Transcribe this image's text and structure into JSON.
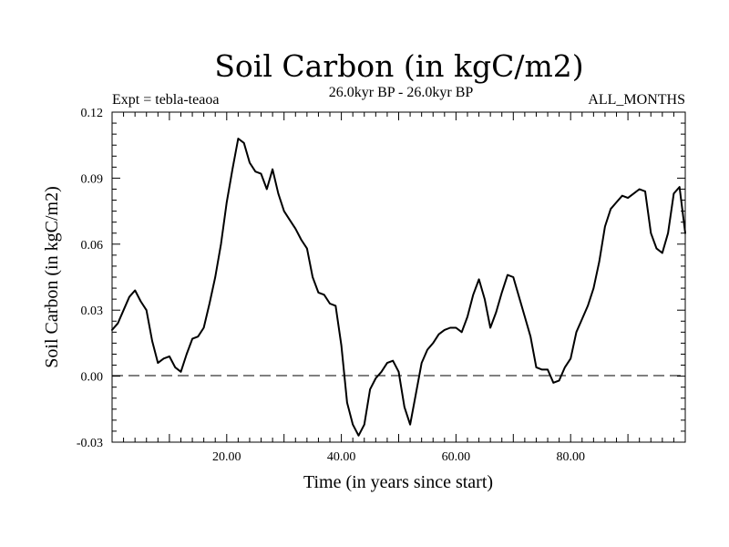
{
  "chart_data": {
    "type": "line",
    "title": "Soil Carbon (in kgC/m2)",
    "subtitle_left": "Expt = tebla-teaoa",
    "subtitle_center": "26.0kyr BP - 26.0kyr BP",
    "subtitle_right": "ALL_MONTHS",
    "xlabel": "Time (in years since start)",
    "ylabel": "Soil Carbon (in kgC/m2)",
    "xlim": [
      0,
      100
    ],
    "ylim": [
      -0.03,
      0.12
    ],
    "xticks": [
      20,
      40,
      60,
      80
    ],
    "xtick_labels": [
      "20.00",
      "40.00",
      "60.00",
      "80.00"
    ],
    "yticks": [
      -0.03,
      0,
      0.03,
      0.06,
      0.09,
      0.12
    ],
    "ytick_labels": [
      "-0.03",
      "0.00",
      "0.03",
      "0.06",
      "0.09",
      "0.12"
    ],
    "reference_line": {
      "y": 0,
      "style": "dashed"
    },
    "grid": false,
    "series": [
      {
        "x": [
          0,
          1,
          2,
          3,
          4,
          5,
          6,
          7,
          8,
          9,
          10,
          11,
          12,
          13,
          14,
          15,
          16,
          17,
          18,
          19,
          20,
          21,
          22,
          23,
          24,
          25,
          26,
          27,
          28,
          29,
          30,
          31,
          32,
          33,
          34,
          35,
          36,
          37,
          38,
          39,
          40,
          41,
          42,
          43,
          44,
          45,
          46,
          47,
          48,
          49,
          50,
          51,
          52,
          53,
          54,
          55,
          56,
          57,
          58,
          59,
          60,
          61,
          62,
          63,
          64,
          65,
          66,
          67,
          68,
          69,
          70,
          71,
          72,
          73,
          74,
          75,
          76,
          77,
          78,
          79,
          80,
          81,
          82,
          83,
          84,
          85,
          86,
          87,
          88,
          89,
          90,
          91,
          92,
          93,
          94,
          95,
          96,
          97,
          98,
          99,
          100
        ],
        "y": [
          0.021,
          0.024,
          0.03,
          0.036,
          0.039,
          0.034,
          0.03,
          0.016,
          0.006,
          0.008,
          0.009,
          0.004,
          0.002,
          0.01,
          0.017,
          0.018,
          0.022,
          0.033,
          0.045,
          0.06,
          0.079,
          0.094,
          0.108,
          0.106,
          0.097,
          0.093,
          0.092,
          0.085,
          0.094,
          0.083,
          0.075,
          0.071,
          0.067,
          0.062,
          0.058,
          0.045,
          0.038,
          0.037,
          0.033,
          0.032,
          0.014,
          -0.012,
          -0.022,
          -0.027,
          -0.022,
          -0.006,
          -0.001,
          0.002,
          0.006,
          0.007,
          0.002,
          -0.014,
          -0.022,
          -0.008,
          0.006,
          0.012,
          0.015,
          0.019,
          0.021,
          0.022,
          0.022,
          0.02,
          0.027,
          0.037,
          0.044,
          0.035,
          0.022,
          0.029,
          0.038,
          0.046,
          0.045,
          0.036,
          0.027,
          0.018,
          0.004,
          0.003,
          0.003,
          -0.003,
          -0.002,
          0.004,
          0.008,
          0.02,
          0.026,
          0.032,
          0.04,
          0.052,
          0.068,
          0.076,
          0.079,
          0.082,
          0.081,
          0.083,
          0.085,
          0.084,
          0.065,
          0.058,
          0.056,
          0.065,
          0.083,
          0.086,
          0.065
        ]
      }
    ]
  }
}
